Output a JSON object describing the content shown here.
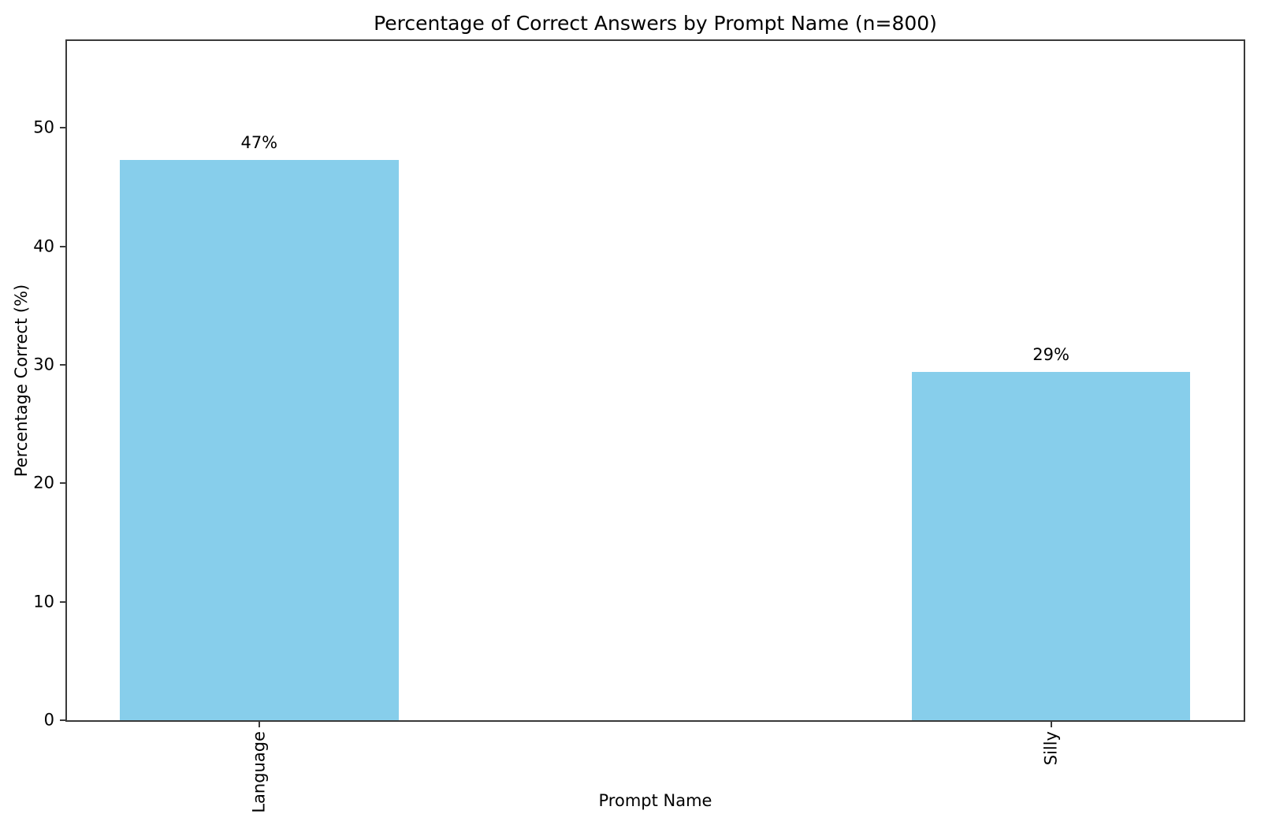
{
  "chart_data": {
    "type": "bar",
    "title": "Percentage of Correct Answers by Prompt Name (n=800)",
    "xlabel": "Prompt Name",
    "ylabel": "Percentage Correct (%)",
    "categories": [
      "Language",
      "Silly"
    ],
    "values": [
      47.3,
      29.4
    ],
    "bar_labels": [
      "47%",
      "29%"
    ],
    "yticks": [
      0,
      10,
      20,
      30,
      40,
      50
    ],
    "ylim": [
      0,
      57.35
    ],
    "xtick_rotation": 90,
    "grid": false,
    "legend": "none",
    "bar_color": "#87CEEB",
    "spine_color": "#3a3a3a",
    "layout": {
      "bar_center_fracs": [
        0.1633,
        0.8363
      ],
      "bar_width_frac": 0.2368
    }
  }
}
